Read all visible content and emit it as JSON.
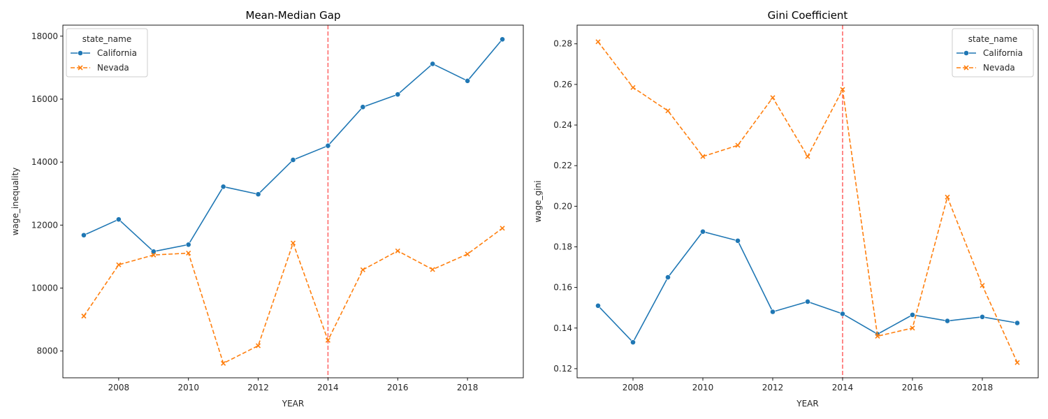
{
  "chart_data": [
    {
      "type": "line",
      "title": "Mean-Median Gap",
      "xlabel": "YEAR",
      "ylabel": "wage_inequality",
      "x": [
        2007,
        2008,
        2009,
        2010,
        2011,
        2012,
        2013,
        2014,
        2015,
        2016,
        2017,
        2018,
        2019
      ],
      "xlim": [
        2006.4,
        2019.6
      ],
      "ylim": [
        7150,
        18350
      ],
      "xticks": [
        2008,
        2010,
        2012,
        2014,
        2016,
        2018
      ],
      "yticks": [
        8000,
        10000,
        12000,
        14000,
        16000,
        18000
      ],
      "grid": false,
      "legend": {
        "title": "state_name",
        "position": "upper-left"
      },
      "reference_line": {
        "x": 2014,
        "color": "#ff6b6b",
        "style": "dashed"
      },
      "series": [
        {
          "name": "California",
          "color": "#1f77b4",
          "marker": "circle",
          "dash": "solid",
          "values": [
            11680,
            12180,
            11160,
            11380,
            13220,
            12980,
            14070,
            14520,
            15750,
            16150,
            17120,
            16580,
            17900
          ]
        },
        {
          "name": "Nevada",
          "color": "#ff7f0e",
          "marker": "x",
          "dash": "dashed",
          "values": [
            9110,
            10740,
            11050,
            11110,
            7610,
            8170,
            11430,
            8340,
            10580,
            11180,
            10590,
            11080,
            11900
          ]
        }
      ]
    },
    {
      "type": "line",
      "title": "Gini Coefficient",
      "xlabel": "YEAR",
      "ylabel": "wage_gini",
      "x": [
        2007,
        2008,
        2009,
        2010,
        2011,
        2012,
        2013,
        2014,
        2015,
        2016,
        2017,
        2018,
        2019
      ],
      "xlim": [
        2006.4,
        2019.6
      ],
      "ylim": [
        0.1155,
        0.2892
      ],
      "xticks": [
        2008,
        2010,
        2012,
        2014,
        2016,
        2018
      ],
      "yticks": [
        0.12,
        0.14,
        0.16,
        0.18,
        0.2,
        0.22,
        0.24,
        0.26,
        0.28
      ],
      "ytick_labels": [
        "0.12",
        "0.14",
        "0.16",
        "0.18",
        "0.20",
        "0.22",
        "0.24",
        "0.26",
        "0.28"
      ],
      "grid": false,
      "legend": {
        "title": "state_name",
        "position": "upper-right"
      },
      "reference_line": {
        "x": 2014,
        "color": "#ff6b6b",
        "style": "dashed"
      },
      "series": [
        {
          "name": "California",
          "color": "#1f77b4",
          "marker": "circle",
          "dash": "solid",
          "values": [
            0.151,
            0.133,
            0.165,
            0.1875,
            0.183,
            0.148,
            0.153,
            0.147,
            0.137,
            0.1465,
            0.1435,
            0.1455,
            0.1425
          ]
        },
        {
          "name": "Nevada",
          "color": "#ff7f0e",
          "marker": "x",
          "dash": "dashed",
          "values": [
            0.281,
            0.2585,
            0.247,
            0.2245,
            0.23,
            0.2535,
            0.2245,
            0.2575,
            0.136,
            0.14,
            0.2045,
            0.161,
            0.123
          ]
        }
      ]
    }
  ]
}
